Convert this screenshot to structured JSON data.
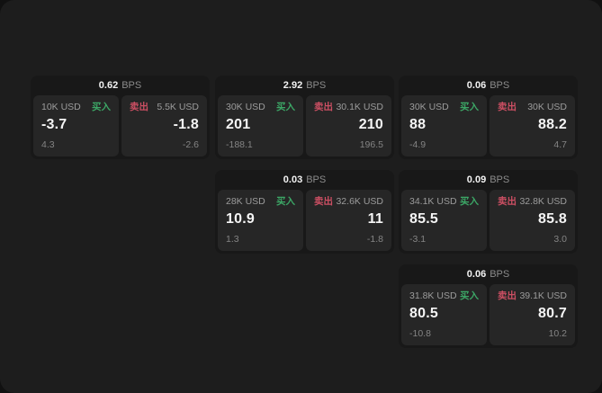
{
  "labels": {
    "buy": "买入",
    "sell": "卖出",
    "bps_unit": "BPS"
  },
  "colors": {
    "background_outer": "#111111",
    "background_page": "#1d1d1d",
    "card_background": "#181818",
    "panel_background": "#262626",
    "primary_text": "#f5f5f5",
    "muted_text": "#9c9c9c",
    "buy_green": "#3ca766",
    "sell_red": "#cc4f63"
  },
  "cards": [
    {
      "bps": "0.62",
      "row": 0,
      "col": 0,
      "buy": {
        "amount": "10K USD",
        "price": "-3.7",
        "delta": "4.3"
      },
      "sell": {
        "amount": "5.5K USD",
        "price": "-1.8",
        "delta": "-2.6"
      }
    },
    {
      "bps": "2.92",
      "row": 0,
      "col": 1,
      "buy": {
        "amount": "30K USD",
        "price": "201",
        "delta": "-188.1"
      },
      "sell": {
        "amount": "30.1K USD",
        "price": "210",
        "delta": "196.5"
      }
    },
    {
      "bps": "0.06",
      "row": 0,
      "col": 2,
      "buy": {
        "amount": "30K USD",
        "price": "88",
        "delta": "-4.9"
      },
      "sell": {
        "amount": "30K USD",
        "price": "88.2",
        "delta": "4.7"
      }
    },
    {
      "bps": "0.03",
      "row": 1,
      "col": 1,
      "buy": {
        "amount": "28K USD",
        "price": "10.9",
        "delta": "1.3"
      },
      "sell": {
        "amount": "32.6K USD",
        "price": "11",
        "delta": "-1.8"
      }
    },
    {
      "bps": "0.09",
      "row": 1,
      "col": 2,
      "buy": {
        "amount": "34.1K USD",
        "price": "85.5",
        "delta": "-3.1"
      },
      "sell": {
        "amount": "32.8K USD",
        "price": "85.8",
        "delta": "3.0"
      }
    },
    {
      "bps": "0.06",
      "row": 2,
      "col": 2,
      "buy": {
        "amount": "31.8K USD",
        "price": "80.5",
        "delta": "-10.8"
      },
      "sell": {
        "amount": "39.1K USD",
        "price": "80.7",
        "delta": "10.2"
      }
    }
  ]
}
